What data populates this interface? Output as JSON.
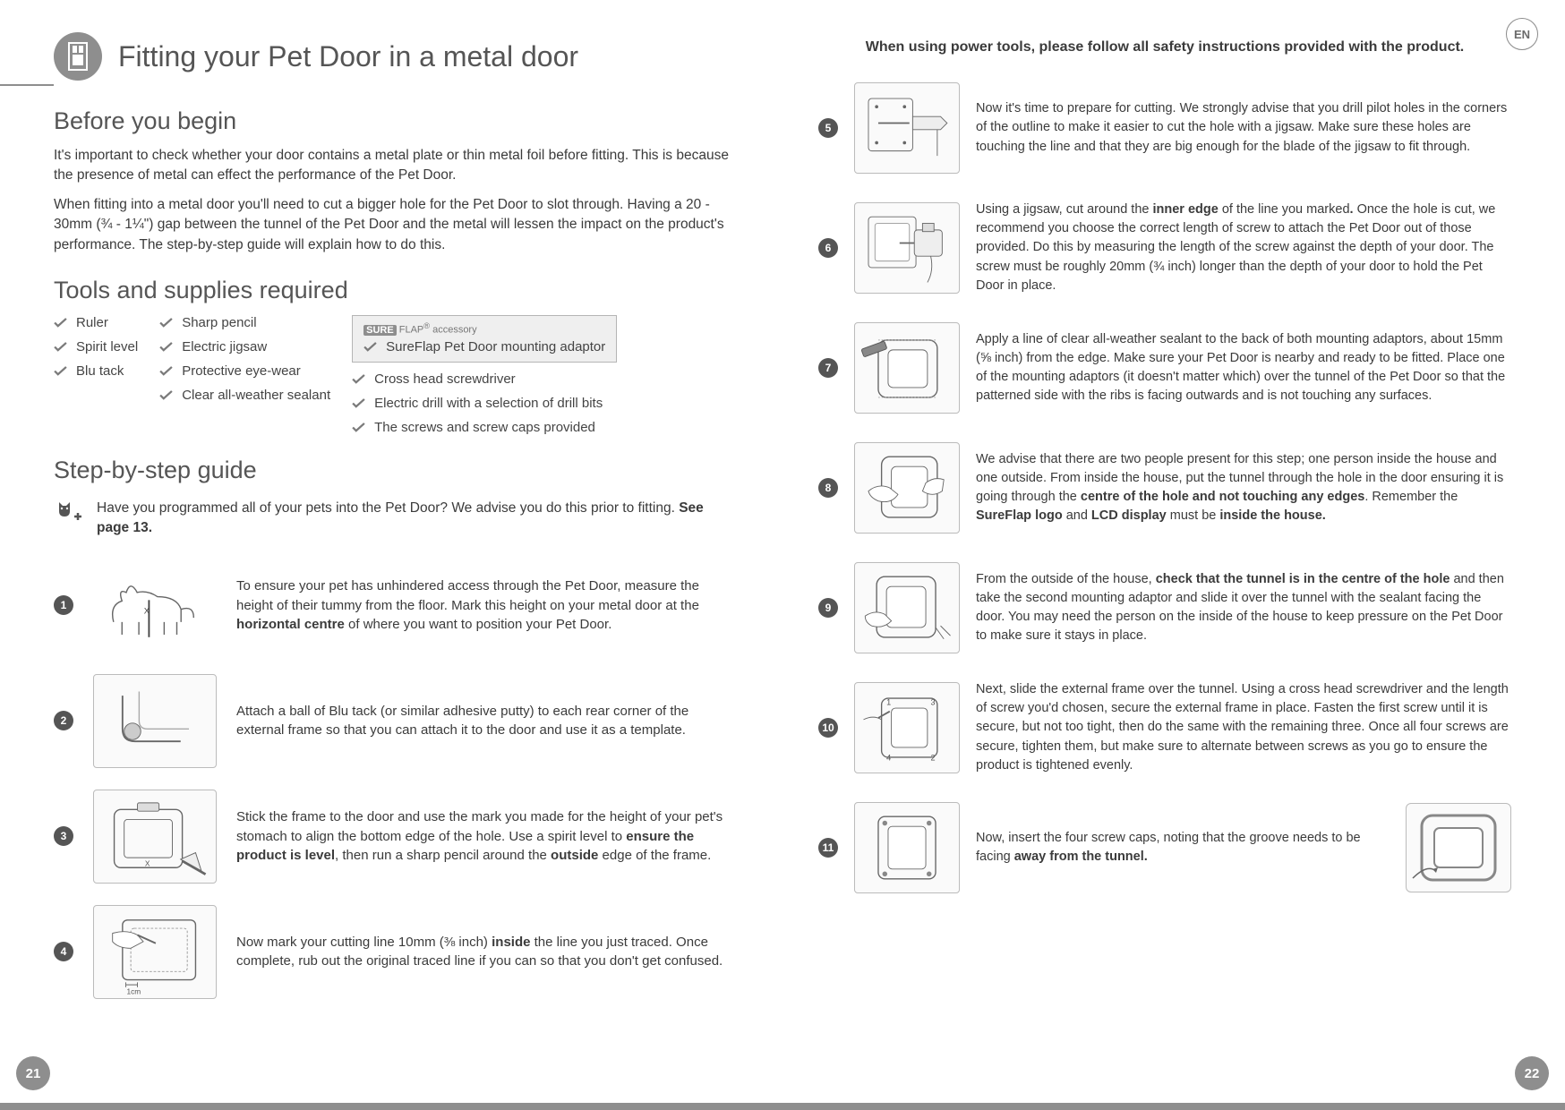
{
  "lang_badge": "EN",
  "page_left_num": "21",
  "page_right_num": "22",
  "title": "Fitting your Pet Door in a metal door",
  "before_heading": "Before you begin",
  "before_p1": "It's important to check whether your door contains a metal plate or thin metal foil before fitting. This is because the presence of metal can effect the performance of the Pet Door.",
  "before_p2": "When fitting into a metal door you'll need to cut a bigger hole for the Pet Door to slot through. Having a 20 - 30mm (¾ - 1¼\") gap between the tunnel of the Pet Door and the metal will lessen the impact on the product's performance. The step-by-step guide will explain how to do this.",
  "tools_heading": "Tools and supplies required",
  "tools_col1": [
    "Ruler",
    "Spirit level",
    "Blu tack"
  ],
  "tools_col2": [
    "Sharp pencil",
    "Electric jigsaw",
    "Protective eye-wear",
    "Clear all-weather sealant"
  ],
  "accessory_brand": "FLAP",
  "accessory_brand_prefix": "SURE",
  "accessory_label_suffix": "accessory",
  "tools_col3": [
    "SureFlap Pet Door mounting adaptor",
    "Cross head screwdriver",
    "Electric drill with a selection of drill bits",
    "The screws and screw caps provided"
  ],
  "guide_heading": "Step-by-step guide",
  "note_text_prefix": "Have you programmed all of your pets into the Pet Door? We advise you do this prior to fitting. ",
  "note_text_bold": "See page 13.",
  "steps_left": [
    {
      "n": "1",
      "text_parts": [
        "To ensure your pet has unhindered access through the Pet Door, measure the height of their tummy from the floor. Mark this height on your metal door at the ",
        "<b>horizontal centre</b>",
        " of where you want to position your Pet Door."
      ]
    },
    {
      "n": "2",
      "text_parts": [
        "Attach a ball of Blu tack (or similar adhesive putty) to each rear corner of the external frame so that you can attach it to the door and use it as a template."
      ]
    },
    {
      "n": "3",
      "text_parts": [
        "Stick the frame to the door and use the mark you made for the height of your pet's stomach to align the bottom edge of the hole. Use a spirit level to ",
        "<b>ensure the product is level</b>",
        ", then run a sharp pencil around the ",
        "<b>outside</b>",
        " edge of the frame."
      ]
    },
    {
      "n": "4",
      "text_parts": [
        "Now mark your cutting line 10mm (⅜ inch) ",
        "<b>inside</b>",
        " the line you just traced. Once complete, rub out the original traced line if you can so that you don't get confused."
      ]
    }
  ],
  "img_caption_1cm": "1cm",
  "right_header": "When using power tools, please follow all safety instructions provided with the product.",
  "steps_right": [
    {
      "n": "5",
      "html": "Now it's time to prepare for cutting. We strongly advise that you drill pilot holes in the corners of the outline to make it easier to cut the hole with a jigsaw. Make sure these holes are touching the line and that they are big enough for the blade of the jigsaw to fit through."
    },
    {
      "n": "6",
      "html": "Using a jigsaw, cut around the <b>inner edge</b> of the line you marked<b>.</b> Once the hole is cut, we recommend you choose the correct length of screw to attach the Pet Door out of those provided. Do this by measuring the length of the screw against the depth of your door. The screw must be roughly 20mm (¾ inch) longer than the depth of your door to hold the Pet Door in place."
    },
    {
      "n": "7",
      "html": "Apply a line of clear all-weather sealant to the back of both mounting adaptors, about 15mm (⅝ inch) from the edge. Make sure your Pet Door is nearby and ready to be fitted. Place one of the mounting adaptors (it doesn't matter which) over the tunnel of the Pet Door so that the patterned side with the ribs is facing outwards and is not touching any surfaces."
    },
    {
      "n": "8",
      "html": "We advise that there are two people present for this step; one person inside the house and one outside. From inside the house, put the tunnel through the hole in the door ensuring it is going through the <b>centre of the hole and not touching any edges</b>. Remember the <b>SureFlap logo</b> and <b>LCD display</b> must be <b>inside the house.</b>"
    },
    {
      "n": "9",
      "html": "From the outside of the house, <b>check that the tunnel is in the centre of the hole</b> and then take the second mounting adaptor and slide it over the tunnel with the sealant facing the door. You may need the person on the inside of the house to keep pressure on the Pet Door to make sure it stays in place."
    },
    {
      "n": "10",
      "html": "Next, slide the external frame over the tunnel. Using a cross head screwdriver and the length of screw you'd chosen, secure the external frame in place. Fasten the first screw until it is secure, but not too tight, then do the same with the remaining three. Once all four screws are secure, tighten them, but make sure to alternate between screws as you go to ensure the product is tightened evenly."
    },
    {
      "n": "11",
      "html": "Now, insert the four screw caps, noting that the groove needs to be facing <b>away from the tunnel.</b>"
    }
  ],
  "screw_labels": [
    "1",
    "2",
    "3",
    "4"
  ]
}
